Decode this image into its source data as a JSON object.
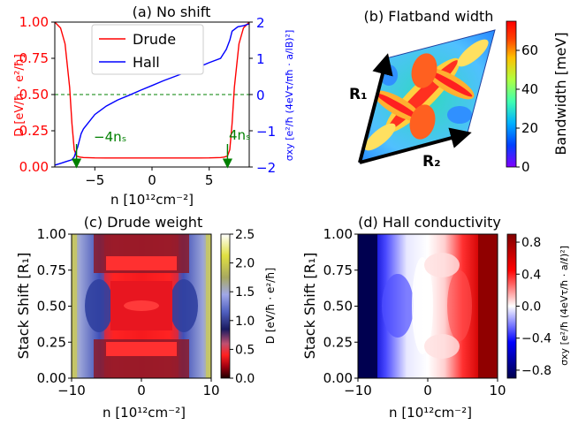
{
  "colors": {
    "drude": "#ff0000",
    "hall": "#0000ff",
    "zero_line": "#008000",
    "marker": "#008000",
    "axis": "#000000"
  },
  "panel_a": {
    "title": "(a)  No shift",
    "xlabel": "n [10¹²cm⁻²]",
    "ylabel_left": "D [eV/ħ · e²/ħ]",
    "ylabel_right": "σxy [e²/ħ (4eVτ/πħ · a/lB)²]",
    "legend": [
      "Drude",
      "Hall"
    ],
    "marker_left": "−4nₛ",
    "marker_right": "4nₛ"
  },
  "panel_b": {
    "title": "(b)  Flatband width",
    "r1": "R₁",
    "r2": "R₂",
    "colorbar_label": "Bandwidth [meV]",
    "colorbar_ticks": [
      "0",
      "20",
      "40",
      "60"
    ]
  },
  "panel_c": {
    "title": "(c)  Drude weight",
    "xlabel": "n [10¹²cm⁻²]",
    "ylabel": "Stack Shift [R₁]",
    "colorbar_label": "D [eV/ħ · e²/ħ]",
    "colorbar_ticks": [
      "0.0",
      "0.5",
      "1.0",
      "1.5",
      "2.0",
      "2.5"
    ]
  },
  "panel_d": {
    "title": "(d)  Hall conductivity",
    "xlabel": "n [10¹²cm⁻²]",
    "ylabel": "Stack Shift [R₁]",
    "colorbar_label": "σxy [e²/ħ (4eVτ/ħ · a/ℓ)²]",
    "colorbar_ticks": [
      "−0.8",
      "−0.4",
      "0.0",
      "0.4",
      "0.8"
    ]
  },
  "chart_data": [
    {
      "type": "line",
      "panel": "a",
      "xlim": [
        -8.5,
        8.5
      ],
      "ylim": [
        0,
        1.0
      ],
      "ylim_right": [
        -2,
        2
      ],
      "xticks": [
        -5,
        0,
        5
      ],
      "yticks": [
        0.0,
        0.25,
        0.5,
        0.75,
        1.0
      ],
      "yticks_right": [
        -2,
        -1,
        0,
        1,
        2
      ],
      "ns_markers": [
        -6.6,
        6.6
      ],
      "zero_line": 0.5,
      "series": [
        {
          "name": "Drude",
          "axis": "left",
          "x": [
            -8.5,
            -8.0,
            -7.6,
            -7.2,
            -7.0,
            -6.8,
            -6.6,
            -6.3,
            -6.0,
            -5.0,
            -4.0,
            -2.0,
            0.0,
            2.0,
            4.0,
            5.0,
            6.0,
            6.3,
            6.6,
            6.8,
            7.0,
            7.2,
            7.6,
            8.0,
            8.5
          ],
          "y": [
            1.0,
            0.96,
            0.85,
            0.55,
            0.3,
            0.12,
            0.075,
            0.068,
            0.065,
            0.063,
            0.062,
            0.062,
            0.062,
            0.062,
            0.062,
            0.063,
            0.065,
            0.068,
            0.075,
            0.12,
            0.3,
            0.55,
            0.85,
            0.96,
            1.0
          ]
        },
        {
          "name": "Hall",
          "axis": "right",
          "x": [
            -8.5,
            -8.0,
            -7.5,
            -7.0,
            -6.8,
            -6.5,
            -6.2,
            -6.0,
            -5.0,
            -4.0,
            -3.0,
            -2.0,
            -1.0,
            0.0,
            1.0,
            2.0,
            3.0,
            4.0,
            5.0,
            6.0,
            6.2,
            6.5,
            6.8,
            7.0,
            7.5,
            8.0,
            8.5
          ],
          "y": [
            -1.95,
            -1.9,
            -1.85,
            -1.8,
            -1.72,
            -1.45,
            -1.08,
            -0.95,
            -0.55,
            -0.32,
            -0.15,
            -0.02,
            0.12,
            0.25,
            0.38,
            0.5,
            0.62,
            0.75,
            0.88,
            1.0,
            1.1,
            1.25,
            1.5,
            1.75,
            1.87,
            1.9,
            1.95
          ]
        }
      ]
    },
    {
      "type": "heatmap",
      "panel": "b",
      "colorbar_range": [
        0,
        75
      ],
      "colorbar_ticks": [
        0,
        20,
        40,
        60
      ]
    },
    {
      "type": "heatmap",
      "panel": "c",
      "xlim": [
        -10,
        10
      ],
      "ylim": [
        0,
        1
      ],
      "xticks": [
        -10,
        0,
        10
      ],
      "yticks": [
        0.0,
        0.25,
        0.5,
        0.75,
        1.0
      ],
      "colorbar_range": [
        0,
        2.5
      ],
      "colorbar_ticks": [
        0.0,
        0.5,
        1.0,
        1.5,
        2.0,
        2.5
      ]
    },
    {
      "type": "heatmap",
      "panel": "d",
      "xlim": [
        -10,
        10
      ],
      "ylim": [
        0,
        1
      ],
      "xticks": [
        -10,
        0,
        10
      ],
      "yticks": [
        0.0,
        0.25,
        0.5,
        0.75,
        1.0
      ],
      "colorbar_range": [
        -0.9,
        0.9
      ],
      "colorbar_ticks": [
        -0.8,
        -0.4,
        0.0,
        0.4,
        0.8
      ]
    }
  ]
}
